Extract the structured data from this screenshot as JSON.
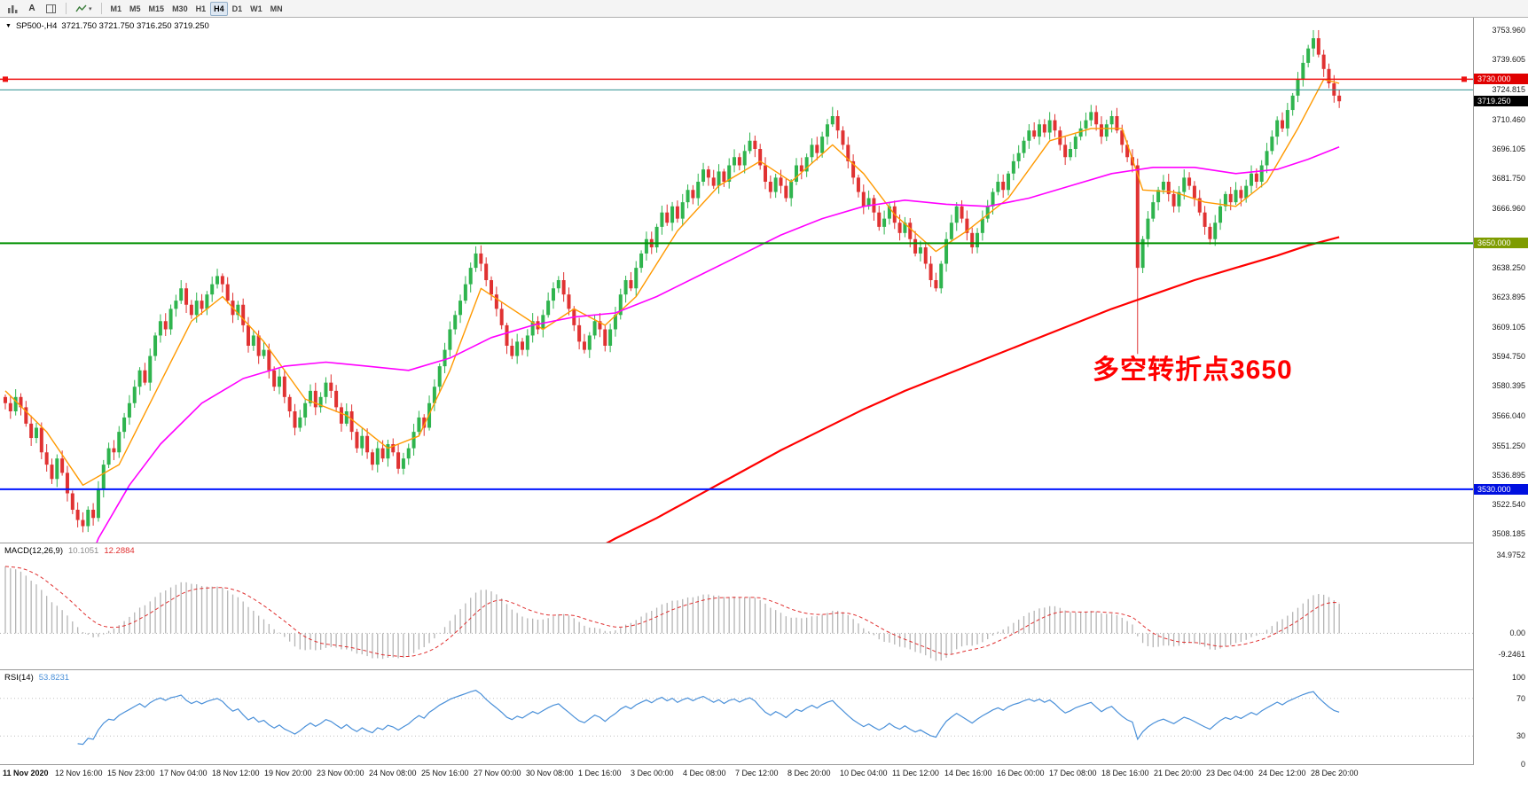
{
  "toolbar": {
    "auto_label": "A",
    "timeframes": [
      {
        "label": "M1",
        "active": false
      },
      {
        "label": "M5",
        "active": false
      },
      {
        "label": "M15",
        "active": false
      },
      {
        "label": "M30",
        "active": false
      },
      {
        "label": "H1",
        "active": false
      },
      {
        "label": "H4",
        "active": true
      },
      {
        "label": "D1",
        "active": false
      },
      {
        "label": "W1",
        "active": false
      },
      {
        "label": "MN",
        "active": false
      }
    ]
  },
  "icons": {
    "one_click_toggle": "▼",
    "dropdown_caret": "▾"
  },
  "chart": {
    "symbol": "SP500-,H4",
    "ohlc": "3721.750 3721.750 3716.250 3719.250",
    "annotation": "多空转折点3650",
    "annotation_color": "#FF0000",
    "axis_labels": [
      "3753.960",
      "3739.605",
      "3724.815",
      "3710.460",
      "3696.105",
      "3681.750",
      "3666.960",
      "3638.250",
      "3623.895",
      "3609.105",
      "3594.750",
      "3580.395",
      "3566.040",
      "3551.250",
      "3536.895",
      "3522.540",
      "3508.185"
    ],
    "hlines": [
      {
        "price": 3730.0,
        "color": "#ee1111",
        "width": 1.4,
        "label": "3730.000",
        "badge_bg": "#e00000",
        "badge_fg": "#ffffff",
        "handles": true
      },
      {
        "price": 3724.815,
        "color": "#2e9090",
        "width": 1.1,
        "label": null,
        "handles": false
      },
      {
        "price": 3650.0,
        "color": "#009000",
        "width": 2,
        "label": "3650.000",
        "badge_bg": "#7e9c00",
        "badge_fg": "#ffffff",
        "handles": false
      },
      {
        "price": 3530.0,
        "color": "#0015ff",
        "width": 2,
        "label": "3530.000",
        "badge_bg": "#0010e0",
        "badge_fg": "#ffffff",
        "handles": false
      }
    ],
    "price_marker": {
      "price": 3719.25,
      "label": "3719.250",
      "badge_bg": "#000000",
      "badge_fg": "#ffffff"
    }
  },
  "chart_data": {
    "type": "candlestick",
    "symbol": "SP500",
    "timeframe": "H4",
    "y_range": [
      3504,
      3760
    ],
    "x_offset": 6,
    "bar_spacing": 5.83,
    "open_first": 3575,
    "closes": [
      3572,
      3568,
      3575,
      3570,
      3562,
      3555,
      3560,
      3548,
      3542,
      3535,
      3545,
      3538,
      3528,
      3520,
      3515,
      3512,
      3520,
      3516,
      3530,
      3542,
      3550,
      3548,
      3558,
      3565,
      3572,
      3580,
      3588,
      3582,
      3595,
      3605,
      3612,
      3608,
      3618,
      3622,
      3628,
      3620,
      3615,
      3622,
      3618,
      3625,
      3630,
      3634,
      3630,
      3622,
      3615,
      3620,
      3610,
      3600,
      3605,
      3595,
      3598,
      3588,
      3580,
      3585,
      3575,
      3568,
      3560,
      3565,
      3572,
      3578,
      3570,
      3575,
      3582,
      3578,
      3570,
      3562,
      3568,
      3558,
      3550,
      3556,
      3548,
      3542,
      3550,
      3545,
      3552,
      3548,
      3540,
      3545,
      3550,
      3558,
      3565,
      3560,
      3572,
      3580,
      3590,
      3598,
      3608,
      3615,
      3622,
      3630,
      3638,
      3645,
      3640,
      3632,
      3625,
      3618,
      3610,
      3600,
      3595,
      3602,
      3598,
      3605,
      3612,
      3608,
      3615,
      3622,
      3628,
      3632,
      3625,
      3618,
      3610,
      3602,
      3598,
      3605,
      3612,
      3608,
      3600,
      3608,
      3615,
      3625,
      3632,
      3628,
      3638,
      3645,
      3652,
      3648,
      3658,
      3665,
      3660,
      3668,
      3662,
      3670,
      3676,
      3672,
      3680,
      3686,
      3682,
      3678,
      3685,
      3680,
      3688,
      3692,
      3688,
      3695,
      3700,
      3696,
      3688,
      3680,
      3675,
      3682,
      3678,
      3672,
      3680,
      3688,
      3685,
      3692,
      3698,
      3694,
      3702,
      3708,
      3712,
      3705,
      3698,
      3690,
      3682,
      3675,
      3668,
      3672,
      3665,
      3658,
      3662,
      3668,
      3660,
      3655,
      3660,
      3652,
      3645,
      3648,
      3640,
      3632,
      3628,
      3640,
      3652,
      3660,
      3668,
      3662,
      3655,
      3648,
      3655,
      3662,
      3668,
      3675,
      3680,
      3676,
      3684,
      3690,
      3694,
      3700,
      3705,
      3702,
      3708,
      3704,
      3710,
      3705,
      3698,
      3692,
      3696,
      3702,
      3706,
      3710,
      3714,
      3708,
      3702,
      3708,
      3712,
      3705,
      3698,
      3692,
      3688,
      3638,
      3652,
      3662,
      3670,
      3676,
      3680,
      3674,
      3668,
      3675,
      3682,
      3678,
      3672,
      3665,
      3658,
      3652,
      3660,
      3668,
      3674,
      3670,
      3676,
      3672,
      3678,
      3684,
      3680,
      3688,
      3695,
      3702,
      3710,
      3706,
      3715,
      3722,
      3730,
      3738,
      3745,
      3750,
      3742,
      3735,
      3728,
      3722,
      3719.25
    ],
    "high_overrides": {
      "91": 3648.5,
      "160": 3716.5,
      "210": 3717.5,
      "253": 3753.96
    },
    "low_overrides": {
      "15": 3509,
      "76": 3537.5,
      "180": 3626.5,
      "219": 3596
    },
    "colors": {
      "up": "#2fb44e",
      "down": "#e03232"
    },
    "ma_fast": {
      "color": "#ff9900",
      "width": 1.4,
      "points": [
        [
          0,
          3578
        ],
        [
          8,
          3558
        ],
        [
          15,
          3532
        ],
        [
          22,
          3542
        ],
        [
          30,
          3582
        ],
        [
          36,
          3612
        ],
        [
          42,
          3624
        ],
        [
          50,
          3602
        ],
        [
          58,
          3574
        ],
        [
          66,
          3566
        ],
        [
          74,
          3550
        ],
        [
          80,
          3556
        ],
        [
          86,
          3588
        ],
        [
          92,
          3628
        ],
        [
          98,
          3618
        ],
        [
          104,
          3608
        ],
        [
          110,
          3618
        ],
        [
          116,
          3610
        ],
        [
          122,
          3624
        ],
        [
          130,
          3656
        ],
        [
          138,
          3678
        ],
        [
          146,
          3690
        ],
        [
          152,
          3680
        ],
        [
          160,
          3698
        ],
        [
          166,
          3684
        ],
        [
          172,
          3664
        ],
        [
          180,
          3646
        ],
        [
          186,
          3656
        ],
        [
          194,
          3672
        ],
        [
          202,
          3700
        ],
        [
          210,
          3706
        ],
        [
          216,
          3706
        ],
        [
          220,
          3676
        ],
        [
          226,
          3675
        ],
        [
          232,
          3670
        ],
        [
          238,
          3668
        ],
        [
          244,
          3680
        ],
        [
          250,
          3706
        ],
        [
          255,
          3730
        ],
        [
          258,
          3728
        ]
      ]
    },
    "ma_medium": {
      "color": "#ff00ff",
      "width": 1.6,
      "points": [
        [
          14,
          3480
        ],
        [
          18,
          3506
        ],
        [
          24,
          3532
        ],
        [
          30,
          3552
        ],
        [
          38,
          3572
        ],
        [
          46,
          3584
        ],
        [
          54,
          3590
        ],
        [
          62,
          3592
        ],
        [
          70,
          3590
        ],
        [
          78,
          3588
        ],
        [
          86,
          3594
        ],
        [
          94,
          3604
        ],
        [
          102,
          3610
        ],
        [
          110,
          3614
        ],
        [
          118,
          3616
        ],
        [
          126,
          3624
        ],
        [
          134,
          3634
        ],
        [
          142,
          3644
        ],
        [
          150,
          3654
        ],
        [
          158,
          3662
        ],
        [
          166,
          3668
        ],
        [
          174,
          3671
        ],
        [
          182,
          3669
        ],
        [
          190,
          3668
        ],
        [
          198,
          3672
        ],
        [
          206,
          3678
        ],
        [
          214,
          3684
        ],
        [
          222,
          3687
        ],
        [
          230,
          3687
        ],
        [
          238,
          3684
        ],
        [
          246,
          3686
        ],
        [
          252,
          3691
        ],
        [
          258,
          3697
        ]
      ]
    },
    "ma_slow": {
      "color": "#ff0000",
      "width": 2.2,
      "points": [
        [
          110,
          3495
        ],
        [
          118,
          3506
        ],
        [
          126,
          3516
        ],
        [
          134,
          3527
        ],
        [
          142,
          3538
        ],
        [
          150,
          3549
        ],
        [
          158,
          3559
        ],
        [
          166,
          3569
        ],
        [
          174,
          3578
        ],
        [
          182,
          3586
        ],
        [
          190,
          3594
        ],
        [
          198,
          3602
        ],
        [
          206,
          3610
        ],
        [
          214,
          3618
        ],
        [
          222,
          3625
        ],
        [
          230,
          3632
        ],
        [
          238,
          3638
        ],
        [
          246,
          3644
        ],
        [
          252,
          3649
        ],
        [
          258,
          3653
        ]
      ]
    }
  },
  "macd": {
    "name": "MACD(12,26,9)",
    "value_main": "10.1051",
    "value_signal": "12.2884",
    "histogram_color": "#b4b4b4",
    "signal_color": "#e03030",
    "range": [
      -16,
      40
    ],
    "seed_offsets": [
      -25,
      -55
    ],
    "axis": [
      {
        "label": "34.9752",
        "value": 34.9752
      },
      {
        "label": "0.00",
        "value": 0
      },
      {
        "label": "-9.2461",
        "value": -9.2461
      }
    ]
  },
  "rsi": {
    "name": "RSI(14)",
    "value": "53.8231",
    "color": "#4a90d9",
    "levels": [
      70,
      30
    ],
    "axis": [
      {
        "label": "100",
        "value": 100
      },
      {
        "label": "70",
        "value": 70
      },
      {
        "label": "30",
        "value": 30
      },
      {
        "label": "0",
        "value": 0
      }
    ]
  },
  "time_axis": {
    "labels": [
      "11 Nov 2020",
      "12 Nov 16:00",
      "15 Nov 23:00",
      "17 Nov 04:00",
      "18 Nov 12:00",
      "19 Nov 20:00",
      "23 Nov 00:00",
      "24 Nov 08:00",
      "25 Nov 16:00",
      "27 Nov 00:00",
      "30 Nov 08:00",
      "1 Dec 16:00",
      "3 Dec 00:00",
      "4 Dec 08:00",
      "7 Dec 12:00",
      "8 Dec 20:00",
      "10 Dec 04:00",
      "11 Dec 12:00",
      "14 Dec 16:00",
      "16 Dec 00:00",
      "17 Dec 08:00",
      "18 Dec 16:00",
      "21 Dec 20:00",
      "23 Dec 04:00",
      "24 Dec 12:00",
      "28 Dec 20:00"
    ]
  }
}
